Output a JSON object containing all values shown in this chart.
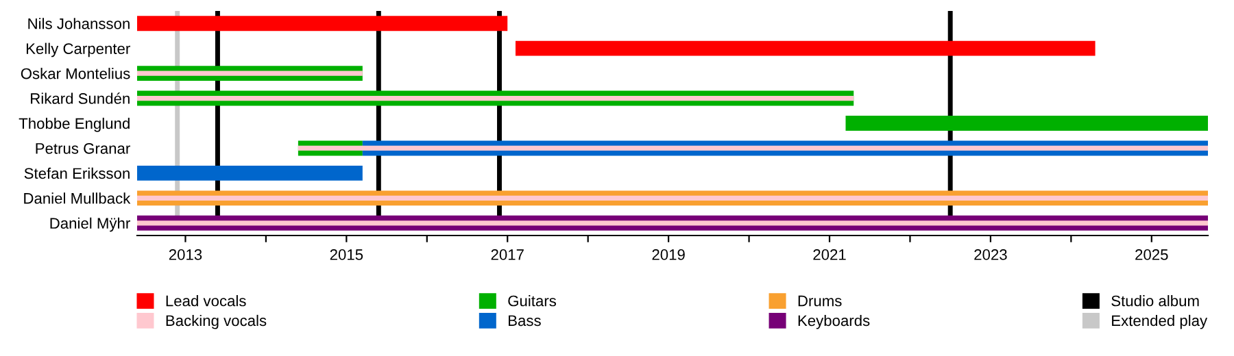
{
  "chart_data": {
    "type": "bar",
    "orientation": "horizontal",
    "legend": "bottom",
    "grid": false,
    "categories": [
      "Nils Johansson",
      "Kelly Carpenter",
      "Oskar Montelius",
      "Rikard Sundén",
      "Thobbe Englund",
      "Petrus Granar",
      "Stefan Eriksson",
      "Daniel Mullback",
      "Daniel Mÿhr"
    ],
    "xlim": [
      2012.4,
      2025.7
    ],
    "xticks": [
      2013,
      {
        "value": 2014,
        "label": null
      },
      2015,
      {
        "value": 2016,
        "label": null
      },
      2017,
      {
        "value": 2018,
        "label": null
      },
      2019,
      {
        "value": 2020,
        "label": null
      },
      2021,
      {
        "value": 2022,
        "label": null
      },
      2023,
      {
        "value": 2024,
        "label": null
      },
      2025
    ],
    "series": [
      {
        "name": "Lead vocals",
        "color": "#ff0000",
        "base": [
          2012.4,
          2017.1,
          null,
          null,
          null,
          null,
          null,
          null,
          null
        ],
        "values": [
          4.6,
          7.2,
          null,
          null,
          null,
          null,
          null,
          null,
          null
        ]
      },
      {
        "name": "Guitars",
        "color": "#00b000",
        "base": [
          null,
          null,
          2012.4,
          2012.4,
          2021.2,
          2014.4,
          null,
          null,
          null
        ],
        "values": [
          null,
          null,
          2.8,
          8.9,
          4.5,
          0.8,
          null,
          null,
          null
        ]
      },
      {
        "name": "Bass",
        "color": "#0066cc",
        "base": [
          null,
          null,
          null,
          null,
          null,
          2015.2,
          2012.4,
          null,
          null
        ],
        "values": [
          null,
          null,
          null,
          null,
          null,
          10.5,
          2.8,
          null,
          null
        ]
      },
      {
        "name": "Drums",
        "color": "#f9a030",
        "base": [
          null,
          null,
          null,
          null,
          null,
          null,
          null,
          2012.4,
          null
        ],
        "values": [
          null,
          null,
          null,
          null,
          null,
          null,
          null,
          13.3,
          null
        ]
      },
      {
        "name": "Keyboards",
        "color": "#770077",
        "base": [
          null,
          null,
          null,
          null,
          null,
          null,
          null,
          null,
          2012.4
        ],
        "values": [
          null,
          null,
          null,
          null,
          null,
          null,
          null,
          null,
          13.3
        ]
      },
      {
        "name": "Backing vocals",
        "color": "#ffc8cf",
        "base": [
          null,
          null,
          2012.4,
          2012.4,
          null,
          2014.4,
          null,
          2012.4,
          2012.4
        ],
        "values": [
          null,
          null,
          2.8,
          8.9,
          null,
          11.3,
          null,
          13.3,
          13.3
        ]
      }
    ],
    "ref_lines": [
      {
        "axis": "x",
        "value": 2013.4,
        "label": "Studio album",
        "color": "#000000"
      },
      {
        "axis": "x",
        "value": 2015.4,
        "label": null,
        "color": "#000000"
      },
      {
        "axis": "x",
        "value": 2016.9,
        "label": null,
        "color": "#000000"
      },
      {
        "axis": "x",
        "value": 2022.5,
        "label": null,
        "color": "#000000"
      },
      {
        "axis": "x",
        "value": 2012.9,
        "label": "Extended play",
        "color": "#c8c8c8"
      }
    ]
  }
}
